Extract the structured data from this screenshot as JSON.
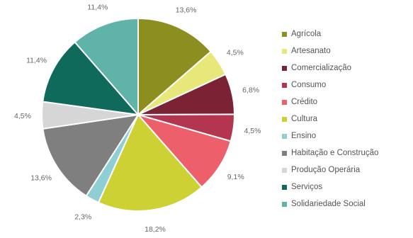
{
  "chart_data": {
    "type": "pie",
    "start_angle_deg": 0,
    "direction": "clockwise",
    "legend_position": "right",
    "slices": [
      {
        "name": "Agrícola",
        "value": 13.6,
        "label": "13,6%",
        "color": "#8c8f1f"
      },
      {
        "name": "Artesanato",
        "value": 4.5,
        "label": "4,5%",
        "color": "#e8e87a"
      },
      {
        "name": "Comercialização",
        "value": 6.8,
        "label": "6,8%",
        "color": "#7b2335"
      },
      {
        "name": "Consumo",
        "value": 4.5,
        "label": "4,5%",
        "color": "#b3354f"
      },
      {
        "name": "Crédito",
        "value": 9.1,
        "label": "9,1%",
        "color": "#ee5f6c"
      },
      {
        "name": "Cultura",
        "value": 18.2,
        "label": "18,2%",
        "color": "#cdd133"
      },
      {
        "name": "Ensino",
        "value": 2.3,
        "label": "2,3%",
        "color": "#8fcfd3"
      },
      {
        "name": "Habitação e Construção",
        "value": 13.6,
        "label": "13,6%",
        "color": "#7f7f7f"
      },
      {
        "name": "Produção Operária",
        "value": 4.5,
        "label": "4,5%",
        "color": "#d6d6d6"
      },
      {
        "name": "Serviços",
        "value": 11.4,
        "label": "11,4%",
        "color": "#0f6a5b"
      },
      {
        "name": "Solidariedade Social",
        "value": 11.4,
        "label": "11,4%",
        "color": "#5fb3a8"
      }
    ]
  }
}
